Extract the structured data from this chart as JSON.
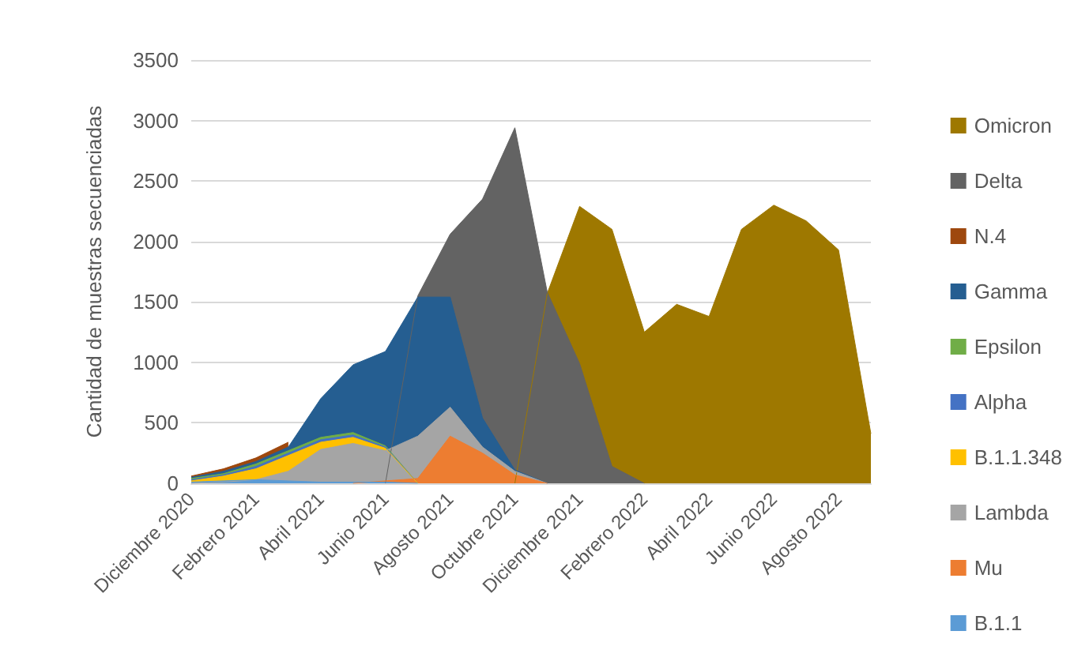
{
  "chart_data": {
    "type": "area",
    "ylabel": "Cantidad de muestras secuenciadas",
    "categories": [
      "Diciembre 2020",
      null,
      "Febrero 2021",
      null,
      "Abril 2021",
      null,
      "Junio 2021",
      null,
      "Agosto 2021",
      null,
      "Octubre 2021",
      null,
      "Diciembre 2021",
      null,
      "Febrero 2022",
      null,
      "Abril 2022",
      null,
      "Junio 2022",
      null,
      "Agosto 2022",
      null
    ],
    "ylim": [
      0,
      3500
    ],
    "yticks": [
      0,
      500,
      1000,
      1500,
      2000,
      2500,
      3000,
      3500
    ],
    "grid": "y",
    "legend": "right",
    "series": [
      {
        "name": "Omicron",
        "color": "#9e7800",
        "values": [
          null,
          null,
          null,
          null,
          null,
          null,
          null,
          null,
          null,
          null,
          0,
          1570,
          2290,
          2100,
          1250,
          1480,
          1380,
          2100,
          2300,
          2170,
          1930,
          410
        ]
      },
      {
        "name": "Delta",
        "color": "#636363",
        "values": [
          null,
          null,
          null,
          null,
          null,
          null,
          0,
          1550,
          2060,
          2350,
          2940,
          1580,
          990,
          140,
          0,
          null,
          null,
          null,
          null,
          null,
          null,
          null
        ]
      },
      {
        "name": "N.4",
        "color": "#9e480e",
        "values": [
          60,
          120,
          210,
          340,
          null,
          null,
          null,
          null,
          null,
          null,
          null,
          null,
          null,
          null,
          null,
          null,
          null,
          null,
          null,
          null,
          null,
          null
        ]
      },
      {
        "name": "Gamma",
        "color": "#255e91",
        "values": [
          50,
          100,
          180,
          300,
          700,
          980,
          1090,
          1540,
          1540,
          540,
          110,
          0,
          null,
          null,
          null,
          null,
          null,
          null,
          null,
          null,
          null,
          null
        ]
      },
      {
        "name": "Epsilon",
        "color": "#70ad47",
        "values": [
          40,
          80,
          160,
          270,
          380,
          420,
          310,
          0,
          null,
          null,
          null,
          null,
          null,
          null,
          null,
          null,
          null,
          null,
          null,
          null,
          null,
          null
        ]
      },
      {
        "name": "Alpha",
        "color": "#4472c4",
        "values": [
          30,
          70,
          140,
          250,
          360,
          400,
          300,
          0,
          null,
          null,
          null,
          null,
          null,
          null,
          null,
          null,
          null,
          null,
          null,
          null,
          null,
          null
        ]
      },
      {
        "name": "B.1.1.348",
        "color": "#ffc000",
        "values": [
          20,
          60,
          120,
          230,
          340,
          380,
          290,
          0,
          null,
          null,
          null,
          null,
          null,
          null,
          null,
          null,
          null,
          null,
          null,
          null,
          null,
          null
        ]
      },
      {
        "name": "Lambda",
        "color": "#a5a5a5",
        "values": [
          0,
          10,
          30,
          100,
          280,
          330,
          270,
          390,
          630,
          300,
          100,
          0,
          null,
          null,
          null,
          null,
          null,
          null,
          null,
          null,
          null,
          null
        ]
      },
      {
        "name": "Mu",
        "color": "#ed7d31",
        "values": [
          null,
          null,
          null,
          null,
          null,
          0,
          20,
          40,
          390,
          250,
          70,
          0,
          null,
          null,
          null,
          null,
          null,
          null,
          null,
          null,
          null,
          null
        ]
      },
      {
        "name": "B.1.1",
        "color": "#5b9bd5",
        "values": [
          10,
          20,
          30,
          20,
          10,
          10,
          10,
          0,
          null,
          null,
          null,
          null,
          null,
          null,
          null,
          null,
          null,
          null,
          null,
          null,
          null,
          null
        ]
      }
    ]
  }
}
